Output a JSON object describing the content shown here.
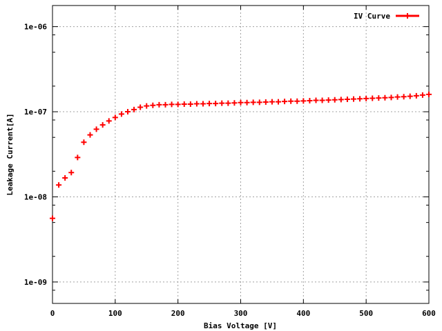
{
  "chart_data": {
    "type": "scatter",
    "title": "",
    "xlabel": "Bias Voltage [V]",
    "ylabel": "Leakage Current[A]",
    "xlim": [
      0,
      600
    ],
    "ylim": [
      5.6e-10,
      1.77e-06
    ],
    "yscale": "log",
    "grid": true,
    "legend_position": "top-right",
    "x_ticks": [
      "0",
      "100",
      "200",
      "300",
      "400",
      "500",
      "600"
    ],
    "y_ticks": [
      "1e-09",
      "1e-08",
      "1e-07",
      "1e-06"
    ],
    "series": [
      {
        "name": "IV Curve",
        "color": "#ff0000",
        "marker": "plus",
        "x": [
          0,
          10,
          20,
          30,
          40,
          50,
          60,
          70,
          80,
          90,
          100,
          110,
          120,
          130,
          140,
          150,
          160,
          170,
          180,
          190,
          200,
          210,
          220,
          230,
          240,
          250,
          260,
          270,
          280,
          290,
          300,
          310,
          320,
          330,
          340,
          350,
          360,
          370,
          380,
          390,
          400,
          410,
          420,
          430,
          440,
          450,
          460,
          470,
          480,
          490,
          500,
          510,
          520,
          530,
          540,
          550,
          560,
          570,
          580,
          590,
          600
        ],
        "y": [
          5.6e-09,
          1.38e-08,
          1.67e-08,
          1.93e-08,
          2.9e-08,
          4.38e-08,
          5.34e-08,
          6.24e-08,
          7e-08,
          7.8e-08,
          8.57e-08,
          9.4e-08,
          1e-07,
          1.06e-07,
          1.13e-07,
          1.17e-07,
          1.19e-07,
          1.21e-07,
          1.21e-07,
          1.22e-07,
          1.22e-07,
          1.23e-07,
          1.23e-07,
          1.24e-07,
          1.24e-07,
          1.25e-07,
          1.25e-07,
          1.26e-07,
          1.26e-07,
          1.27e-07,
          1.28e-07,
          1.28e-07,
          1.29e-07,
          1.29e-07,
          1.3e-07,
          1.31e-07,
          1.31e-07,
          1.32e-07,
          1.33e-07,
          1.33e-07,
          1.34e-07,
          1.35e-07,
          1.36e-07,
          1.36e-07,
          1.37e-07,
          1.38e-07,
          1.39e-07,
          1.4e-07,
          1.41e-07,
          1.42e-07,
          1.43e-07,
          1.44e-07,
          1.45e-07,
          1.46e-07,
          1.47e-07,
          1.49e-07,
          1.5e-07,
          1.52e-07,
          1.54e-07,
          1.57e-07,
          1.6e-07
        ]
      }
    ]
  }
}
